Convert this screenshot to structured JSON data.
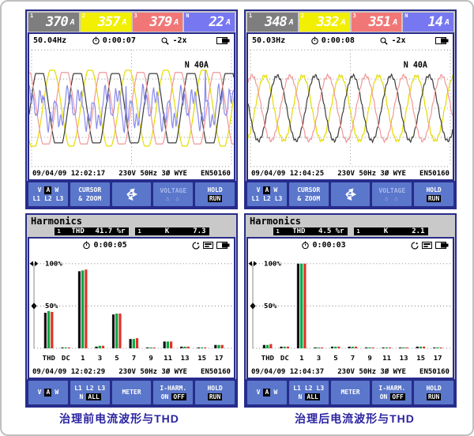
{
  "captions": {
    "left": "治理前电流波形与THD",
    "right": "治理后电流波形与THD"
  },
  "ui_colors": {
    "navy": "#272c8c",
    "softkey_blue": "#5b77cb",
    "bezel_gray": "#c9c9c9",
    "caption_blue": "#2a23a0"
  },
  "screens": {
    "tl": {
      "readings": [
        {
          "marker": "1",
          "value": "370",
          "unit": "A",
          "bg": "#7e7e7e"
        },
        {
          "marker": "2",
          "value": "357",
          "unit": "A",
          "bg": "#f2ef00"
        },
        {
          "marker": "3",
          "value": "379",
          "unit": "A",
          "bg": "#f17777"
        },
        {
          "marker": "N",
          "value": "22",
          "unit": "A",
          "bg": "#7777f1"
        }
      ],
      "freq": "50.04Hz",
      "timer": "0:00:07",
      "zoom_level": "-2x",
      "datetime": "09/04/09 12:02:17",
      "config": "230V 50Hz 3Ø WYE",
      "standard": "EN50160",
      "chart_ref": "chart_data.0",
      "softkeys": {
        "vaw": [
          "V",
          "A",
          "W"
        ],
        "vaw_selected": "A",
        "phases": [
          "L1",
          "L2",
          "L3"
        ],
        "cursor1": "CURSOR",
        "cursor2": "& ZOOM",
        "voltage": "VOLTAGE",
        "voltage_arrows": "△ △",
        "hold": "HOLD",
        "run": "RUN"
      }
    },
    "tr": {
      "readings": [
        {
          "marker": "1",
          "value": "348",
          "unit": "A",
          "bg": "#7e7e7e"
        },
        {
          "marker": "2",
          "value": "332",
          "unit": "A",
          "bg": "#f2ef00"
        },
        {
          "marker": "3",
          "value": "351",
          "unit": "A",
          "bg": "#f17777"
        },
        {
          "marker": "N",
          "value": "14",
          "unit": "A",
          "bg": "#7777f1"
        }
      ],
      "freq": "50.03Hz",
      "timer": "0:00:08",
      "zoom_level": "-2x",
      "datetime": "09/04/09 12:04:25",
      "config": "230V 50Hz 3Ø WYE",
      "standard": "EN50160",
      "chart_ref": "chart_data.1",
      "softkeys": {
        "vaw": [
          "V",
          "A",
          "W"
        ],
        "vaw_selected": "A",
        "phases": [
          "L1",
          "L2",
          "L3"
        ],
        "cursor1": "CURSOR",
        "cursor2": "& ZOOM",
        "voltage": "VOLTAGE",
        "voltage_arrows": "△ △",
        "hold": "HOLD",
        "run": "RUN"
      }
    },
    "bl": {
      "title": "Harmonics",
      "thd_marker": "1",
      "thd_label": "THD",
      "thd_value": "41.7 %r",
      "k_marker": "1",
      "k_label": "K",
      "k_value": "7.3",
      "timer": "0:00:05",
      "datetime": "09/04/09 12:02:29",
      "config": "230V 50Hz 3Ø WYE",
      "standard": "EN50160",
      "chart_ref": "chart_data.2",
      "softkeys": {
        "vaw": [
          "V",
          "A",
          "W"
        ],
        "vaw_selected": "A",
        "phases": [
          "L1",
          "L2",
          "L3"
        ],
        "nall": [
          "N",
          "ALL"
        ],
        "nall_selected": "ALL",
        "meter": "METER",
        "iharm": "I-HARM.",
        "onoff": [
          "ON",
          "OFF"
        ],
        "onoff_selected": "OFF",
        "hold": "HOLD",
        "run": "RUN"
      }
    },
    "br": {
      "title": "Harmonics",
      "thd_marker": "1",
      "thd_label": "THD",
      "thd_value": "4.5 %r",
      "k_marker": "1",
      "k_label": "K",
      "k_value": "2.1",
      "timer": "0:00:03",
      "datetime": "09/04/09 12:04:37",
      "config": "230V 50Hz 3Ø WYE",
      "standard": "EN50160",
      "chart_ref": "chart_data.3",
      "softkeys": {
        "vaw": [
          "V",
          "A",
          "W"
        ],
        "vaw_selected": "A",
        "phases": [
          "L1",
          "L2",
          "L3"
        ],
        "nall": [
          "N",
          "ALL"
        ],
        "nall_selected": "ALL",
        "meter": "METER",
        "iharm": "I-HARM.",
        "onoff": [
          "ON",
          "OFF"
        ],
        "onoff_selected": "OFF",
        "hold": "HOLD",
        "run": "RUN"
      }
    }
  },
  "chart_data": [
    {
      "id": "waveforms_before",
      "type": "line",
      "kind": "waveform",
      "title": "Phase & neutral current waveforms before treatment (distorted, flat-topped)",
      "scale_label": "N 40A",
      "cycles": 5.4,
      "grid": "dotted",
      "series": [
        {
          "name": "L1",
          "color": "#3d3d3d",
          "amplitude": 0.64,
          "phase_deg": -8,
          "clip": 0.78
        },
        {
          "name": "L2",
          "color": "#e4dd00",
          "amplitude": 0.7,
          "phase_deg": 232,
          "clip": 0.92
        },
        {
          "name": "L3",
          "color": "#f29898",
          "amplitude": 0.66,
          "phase_deg": 112,
          "clip": 0.84
        },
        {
          "name": "N",
          "color": "#8a8ae9",
          "amplitude": 0.42,
          "phase_deg": 20,
          "harmonics": [
            [
              3,
              0.55,
              1.0
            ],
            [
              1,
              0.35,
              0.2
            ],
            [
              7,
              0.28,
              2.1
            ],
            [
              11,
              0.2,
              0.6
            ]
          ],
          "spikes": 0.025,
          "noise": 0.05
        }
      ]
    },
    {
      "id": "waveforms_after",
      "type": "line",
      "kind": "waveform",
      "title": "Phase current waveforms after treatment (clean sinusoids)",
      "scale_label": "N 40A",
      "cycles": 5.4,
      "grid": "dotted",
      "series": [
        {
          "name": "L1",
          "color": "#3d3d3d",
          "amplitude": 0.6,
          "phase_deg": 172,
          "ripple": [
            13,
            0.05
          ]
        },
        {
          "name": "L2",
          "color": "#e4dd00",
          "amplitude": 0.6,
          "phase_deg": -68,
          "ripple": [
            13,
            0.05
          ]
        },
        {
          "name": "L3",
          "color": "#f29898",
          "amplitude": 0.6,
          "phase_deg": 52,
          "ripple": [
            13,
            0.05
          ]
        }
      ]
    },
    {
      "id": "harmonics_before",
      "type": "bar",
      "title": "Current harmonic spectrum before treatment (THD 41.7 %r, K 7.3)",
      "ylim": [
        0,
        115
      ],
      "gridlines": [
        [
          100,
          "100%"
        ],
        [
          50,
          "50%"
        ]
      ],
      "categories": [
        "THD",
        "DC",
        "1",
        "3",
        "5",
        "7",
        "9",
        "11",
        "13",
        "15",
        "17"
      ],
      "series": [
        {
          "name": "L1",
          "color": "#141414",
          "values": [
            42,
            1,
            91,
            2,
            40,
            11,
            1,
            8,
            2,
            1,
            4
          ]
        },
        {
          "name": "L2",
          "color": "#00a844",
          "values": [
            44,
            1,
            92,
            3,
            41,
            11,
            1,
            8,
            2,
            1,
            4
          ]
        },
        {
          "name": "L3",
          "color": "#e23228",
          "values": [
            43,
            1,
            93,
            3,
            41,
            12,
            1,
            8,
            2,
            1,
            4
          ]
        }
      ]
    },
    {
      "id": "harmonics_after",
      "type": "bar",
      "title": "Current harmonic spectrum after treatment (THD 4.5 %r, K 2.1)",
      "ylim": [
        0,
        115
      ],
      "gridlines": [
        [
          100,
          "100%"
        ],
        [
          50,
          "50%"
        ]
      ],
      "categories": [
        "THD",
        "DC",
        "1",
        "3",
        "5",
        "7",
        "9",
        "11",
        "13",
        "15",
        "17"
      ],
      "series": [
        {
          "name": "L1",
          "color": "#141414",
          "values": [
            4,
            2,
            100,
            1,
            2,
            2,
            1,
            1,
            1,
            2,
            1
          ]
        },
        {
          "name": "L2",
          "color": "#00a844",
          "values": [
            4,
            2,
            100,
            1,
            2,
            2,
            1,
            1,
            1,
            2,
            1
          ]
        },
        {
          "name": "L3",
          "color": "#e23228",
          "values": [
            5,
            2,
            100,
            1,
            2,
            2,
            1,
            1,
            1,
            2,
            1
          ]
        }
      ]
    }
  ]
}
